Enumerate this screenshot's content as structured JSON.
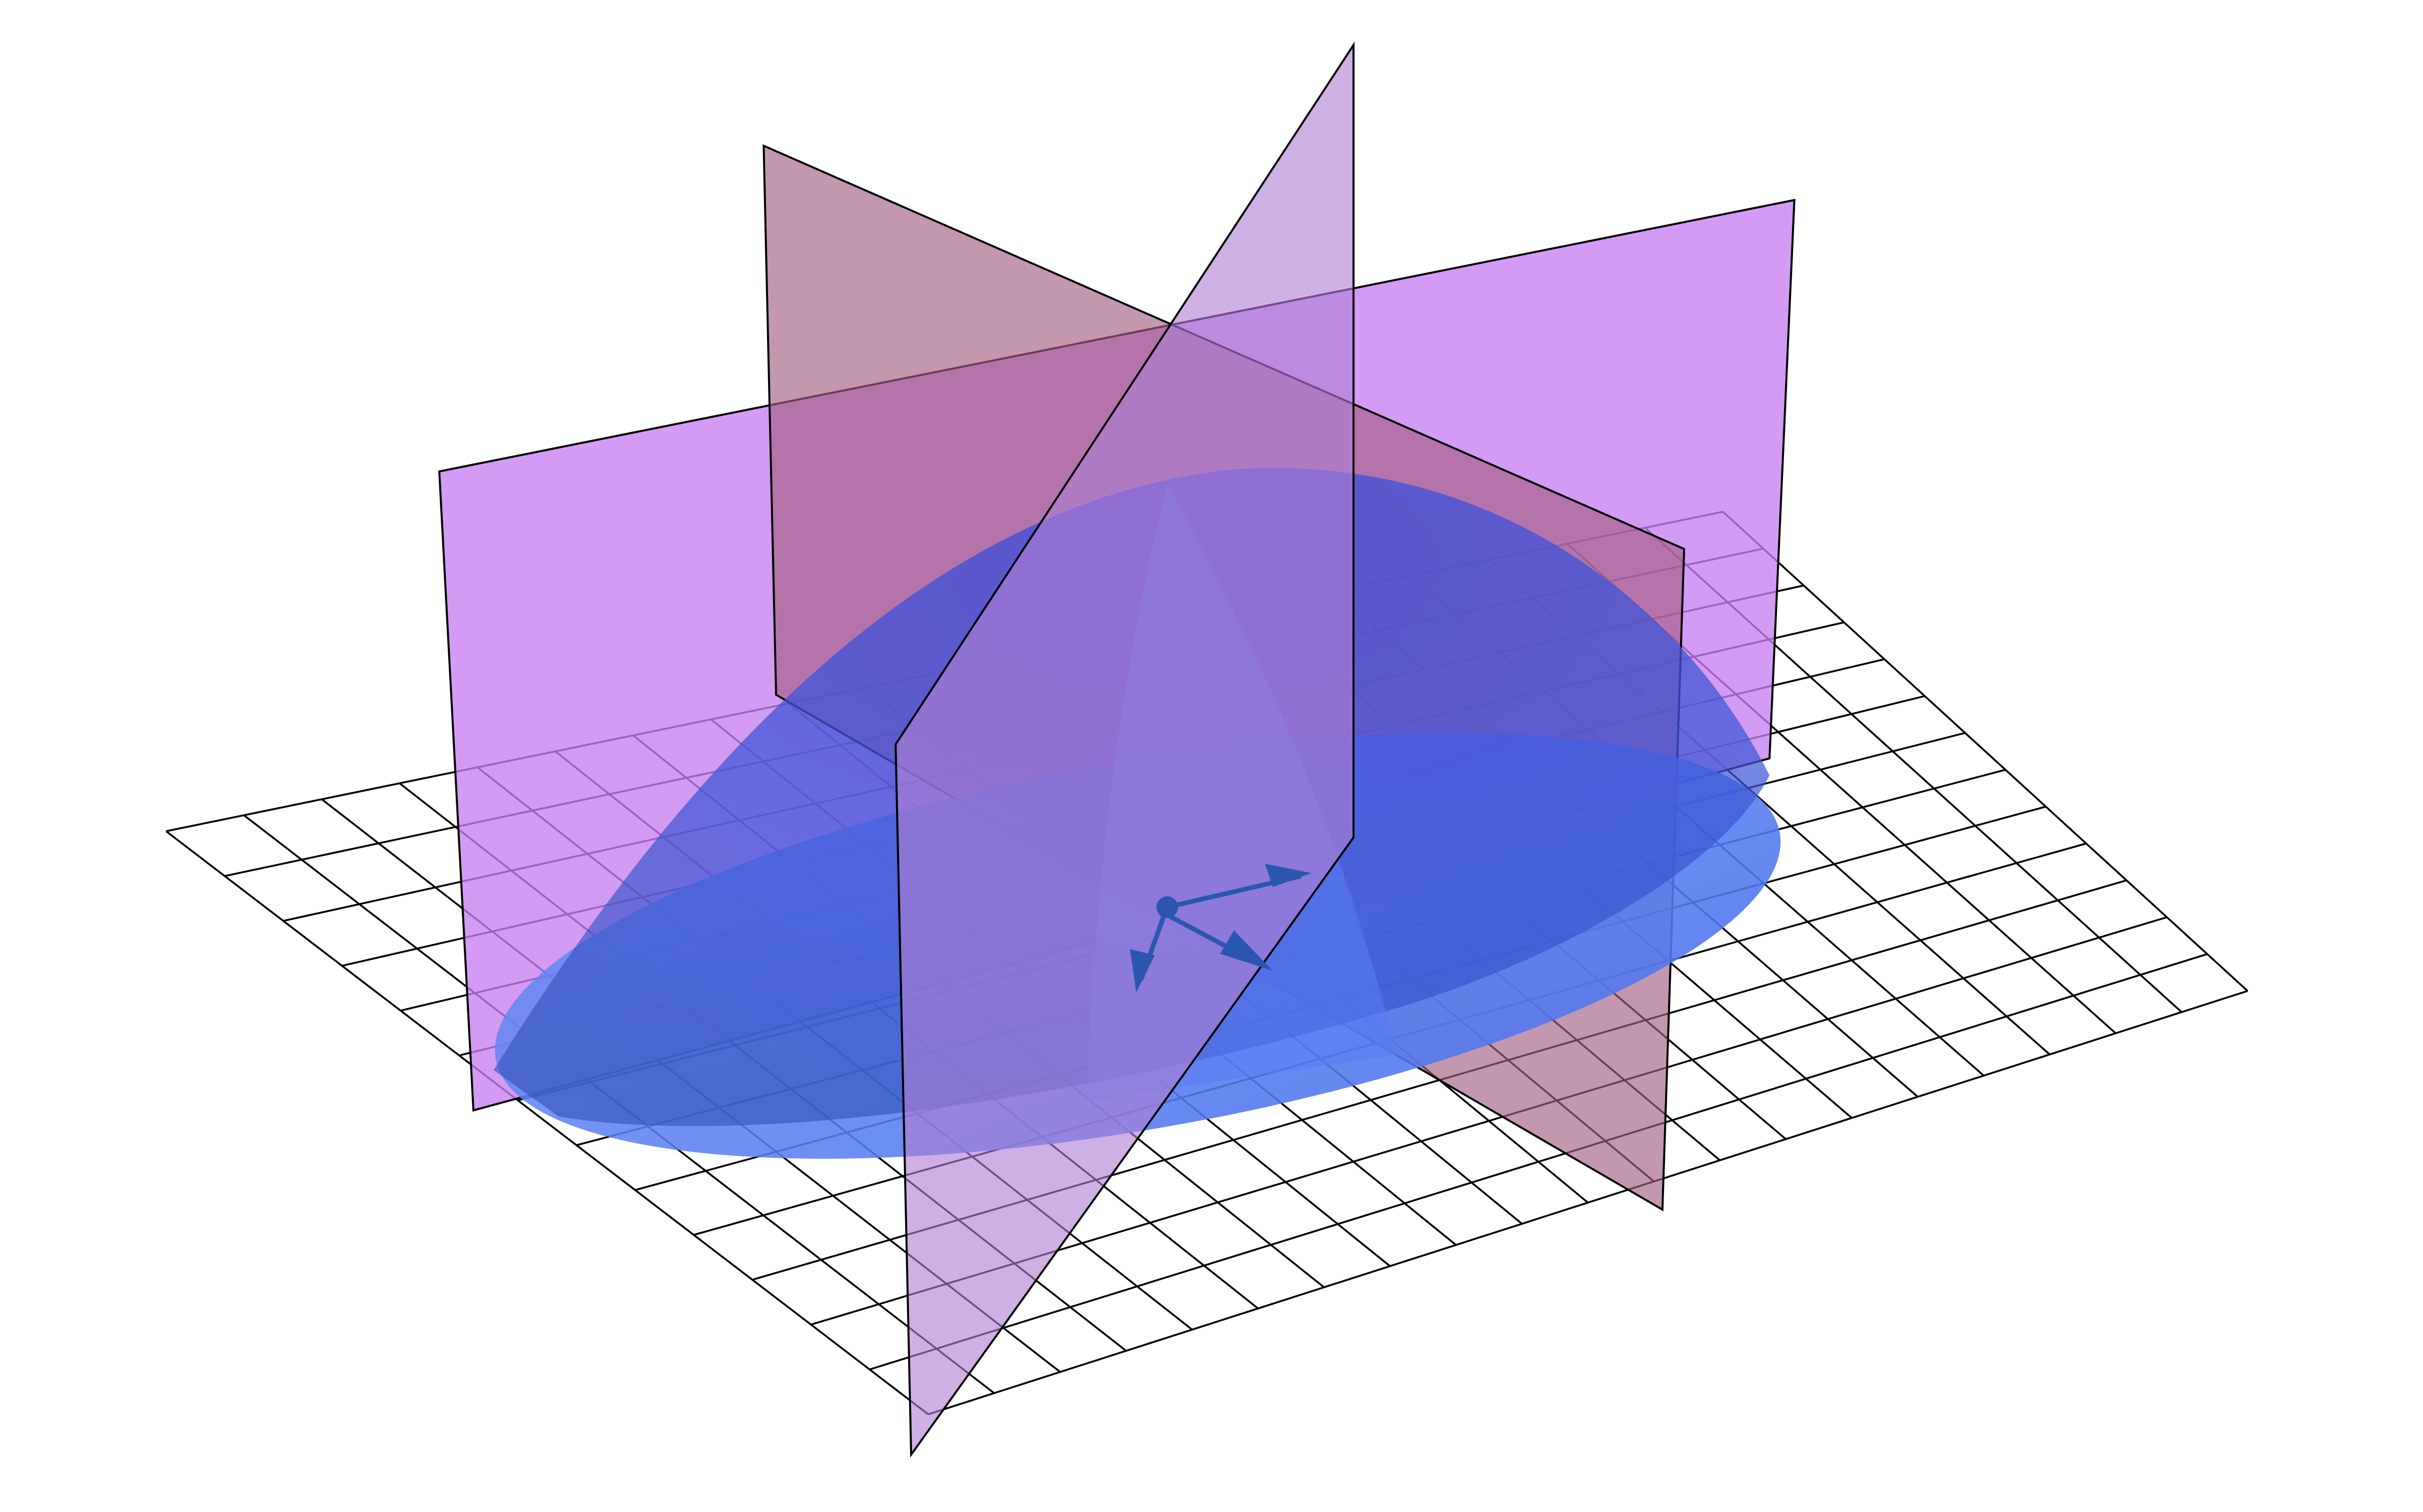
{
  "figure": {
    "description_kind": "3D paraboloid cap over a grid plane, cut by three vertical planes",
    "colors": {
      "background": "#ffffff",
      "grid_line": "#000000",
      "plane_violet": "#c77ff0",
      "plane_mauve": "#a35f82",
      "plane_lilac": "#b07fd3",
      "surface_blue": "#3f6ff0",
      "surface_blue_light": "#6f8ff6",
      "arrow": "#2a56b0"
    },
    "icons": [
      "vector-arrow-icon"
    ]
  }
}
